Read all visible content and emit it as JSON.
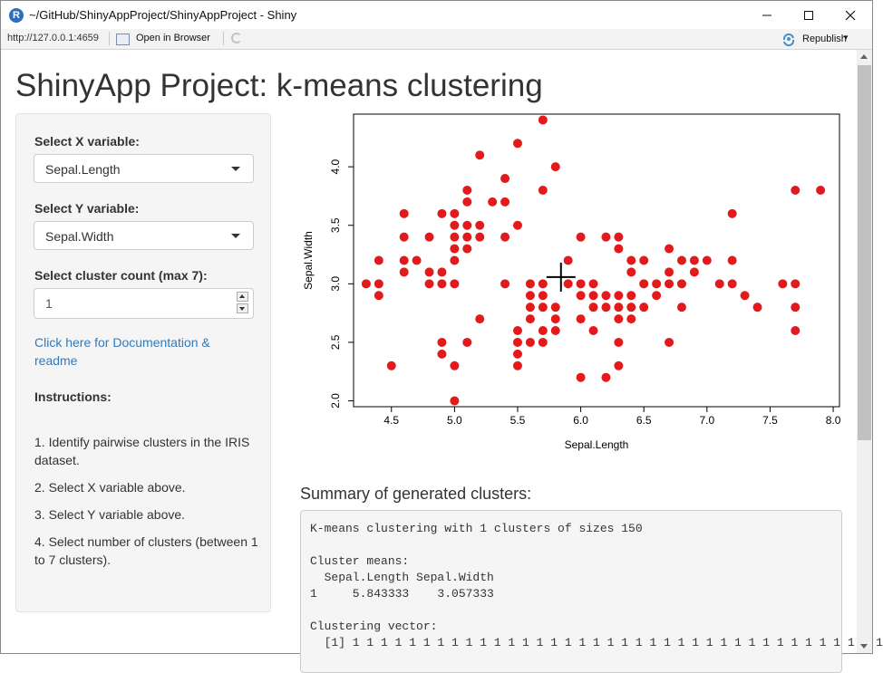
{
  "window": {
    "title": "~/GitHub/ShinyAppProject/ShinyAppProject - Shiny",
    "app_icon_letter": "R",
    "url": "http://127.0.0.1:4659",
    "open_in_browser": "Open in Browser",
    "republish": "Republish"
  },
  "page": {
    "title": "ShinyApp Project: k-means clustering"
  },
  "sidebar": {
    "x_label": "Select X variable:",
    "x_value": "Sepal.Length",
    "y_label": "Select Y variable:",
    "y_value": "Sepal.Width",
    "count_label": "Select cluster count (max 7):",
    "count_value": "1",
    "doc_link": "Click here for Documentation & readme",
    "instructions_heading": "Instructions:",
    "steps": [
      "1. Identify pairwise clusters in the IRIS dataset.",
      "2. Select X variable above.",
      "3. Select Y variable above.",
      "4. Select number of clusters (between 1 to 7 clusters)."
    ]
  },
  "summary": {
    "heading": "Summary of generated clusters:",
    "lines": [
      "K-means clustering with 1 clusters of sizes 150",
      "",
      "Cluster means:",
      "  Sepal.Length Sepal.Width",
      "1     5.843333    3.057333",
      "",
      "Clustering vector:",
      "  [1] 1 1 1 1 1 1 1 1 1 1 1 1 1 1 1 1 1 1 1 1 1 1 1 1 1 1 1 1 1 1 1 1 1 1 1 1 1 1"
    ]
  },
  "chart_data": {
    "type": "scatter",
    "xlabel": "Sepal.Length",
    "ylabel": "Sepal.Width",
    "xlim": [
      4.2,
      8.05
    ],
    "ylim": [
      1.95,
      4.45
    ],
    "xticks": [
      "4.5",
      "5.0",
      "5.5",
      "6.0",
      "6.5",
      "7.0",
      "7.5",
      "8.0"
    ],
    "yticks": [
      "2.0",
      "2.5",
      "3.0",
      "3.5",
      "4.0"
    ],
    "point_color": "#e31a1c",
    "center": [
      5.843333,
      3.057333
    ],
    "points": [
      [
        4.3,
        3.0
      ],
      [
        4.4,
        2.9
      ],
      [
        4.4,
        3.0
      ],
      [
        4.4,
        3.2
      ],
      [
        4.5,
        2.3
      ],
      [
        4.6,
        3.1
      ],
      [
        4.6,
        3.2
      ],
      [
        4.6,
        3.4
      ],
      [
        4.6,
        3.6
      ],
      [
        4.7,
        3.2
      ],
      [
        4.8,
        3.0
      ],
      [
        4.8,
        3.1
      ],
      [
        4.8,
        3.4
      ],
      [
        4.9,
        2.4
      ],
      [
        4.9,
        2.5
      ],
      [
        4.9,
        3.0
      ],
      [
        4.9,
        3.1
      ],
      [
        4.9,
        3.6
      ],
      [
        5.0,
        2.0
      ],
      [
        5.0,
        2.3
      ],
      [
        5.0,
        3.0
      ],
      [
        5.0,
        3.2
      ],
      [
        5.0,
        3.3
      ],
      [
        5.0,
        3.4
      ],
      [
        5.0,
        3.5
      ],
      [
        5.0,
        3.6
      ],
      [
        5.1,
        2.5
      ],
      [
        5.1,
        3.3
      ],
      [
        5.1,
        3.4
      ],
      [
        5.1,
        3.5
      ],
      [
        5.1,
        3.7
      ],
      [
        5.1,
        3.8
      ],
      [
        5.2,
        2.7
      ],
      [
        5.2,
        3.4
      ],
      [
        5.2,
        3.5
      ],
      [
        5.2,
        4.1
      ],
      [
        5.3,
        3.7
      ],
      [
        5.4,
        3.0
      ],
      [
        5.4,
        3.4
      ],
      [
        5.4,
        3.7
      ],
      [
        5.4,
        3.9
      ],
      [
        5.5,
        2.3
      ],
      [
        5.5,
        2.4
      ],
      [
        5.5,
        2.5
      ],
      [
        5.5,
        2.6
      ],
      [
        5.5,
        3.5
      ],
      [
        5.5,
        4.2
      ],
      [
        5.6,
        2.5
      ],
      [
        5.6,
        2.7
      ],
      [
        5.6,
        2.8
      ],
      [
        5.6,
        2.9
      ],
      [
        5.6,
        3.0
      ],
      [
        5.7,
        2.5
      ],
      [
        5.7,
        2.6
      ],
      [
        5.7,
        2.8
      ],
      [
        5.7,
        2.9
      ],
      [
        5.7,
        3.0
      ],
      [
        5.7,
        3.8
      ],
      [
        5.7,
        4.4
      ],
      [
        5.8,
        2.6
      ],
      [
        5.8,
        2.7
      ],
      [
        5.8,
        2.8
      ],
      [
        5.8,
        4.0
      ],
      [
        5.9,
        3.0
      ],
      [
        5.9,
        3.2
      ],
      [
        6.0,
        2.2
      ],
      [
        6.0,
        2.7
      ],
      [
        6.0,
        2.9
      ],
      [
        6.0,
        3.0
      ],
      [
        6.0,
        3.4
      ],
      [
        6.1,
        2.6
      ],
      [
        6.1,
        2.8
      ],
      [
        6.1,
        2.9
      ],
      [
        6.1,
        3.0
      ],
      [
        6.2,
        2.2
      ],
      [
        6.2,
        2.8
      ],
      [
        6.2,
        2.9
      ],
      [
        6.2,
        3.4
      ],
      [
        6.3,
        2.3
      ],
      [
        6.3,
        2.5
      ],
      [
        6.3,
        2.7
      ],
      [
        6.3,
        2.8
      ],
      [
        6.3,
        2.9
      ],
      [
        6.3,
        3.3
      ],
      [
        6.3,
        3.4
      ],
      [
        6.4,
        2.7
      ],
      [
        6.4,
        2.8
      ],
      [
        6.4,
        2.9
      ],
      [
        6.4,
        3.1
      ],
      [
        6.4,
        3.2
      ],
      [
        6.5,
        2.8
      ],
      [
        6.5,
        3.0
      ],
      [
        6.5,
        3.2
      ],
      [
        6.6,
        2.9
      ],
      [
        6.6,
        3.0
      ],
      [
        6.7,
        2.5
      ],
      [
        6.7,
        3.0
      ],
      [
        6.7,
        3.1
      ],
      [
        6.7,
        3.3
      ],
      [
        6.8,
        2.8
      ],
      [
        6.8,
        3.0
      ],
      [
        6.8,
        3.2
      ],
      [
        6.9,
        3.1
      ],
      [
        6.9,
        3.2
      ],
      [
        7.0,
        3.2
      ],
      [
        7.1,
        3.0
      ],
      [
        7.2,
        3.0
      ],
      [
        7.2,
        3.2
      ],
      [
        7.2,
        3.6
      ],
      [
        7.3,
        2.9
      ],
      [
        7.4,
        2.8
      ],
      [
        7.6,
        3.0
      ],
      [
        7.7,
        2.6
      ],
      [
        7.7,
        2.8
      ],
      [
        7.7,
        3.0
      ],
      [
        7.7,
        3.8
      ],
      [
        7.9,
        3.8
      ]
    ]
  }
}
